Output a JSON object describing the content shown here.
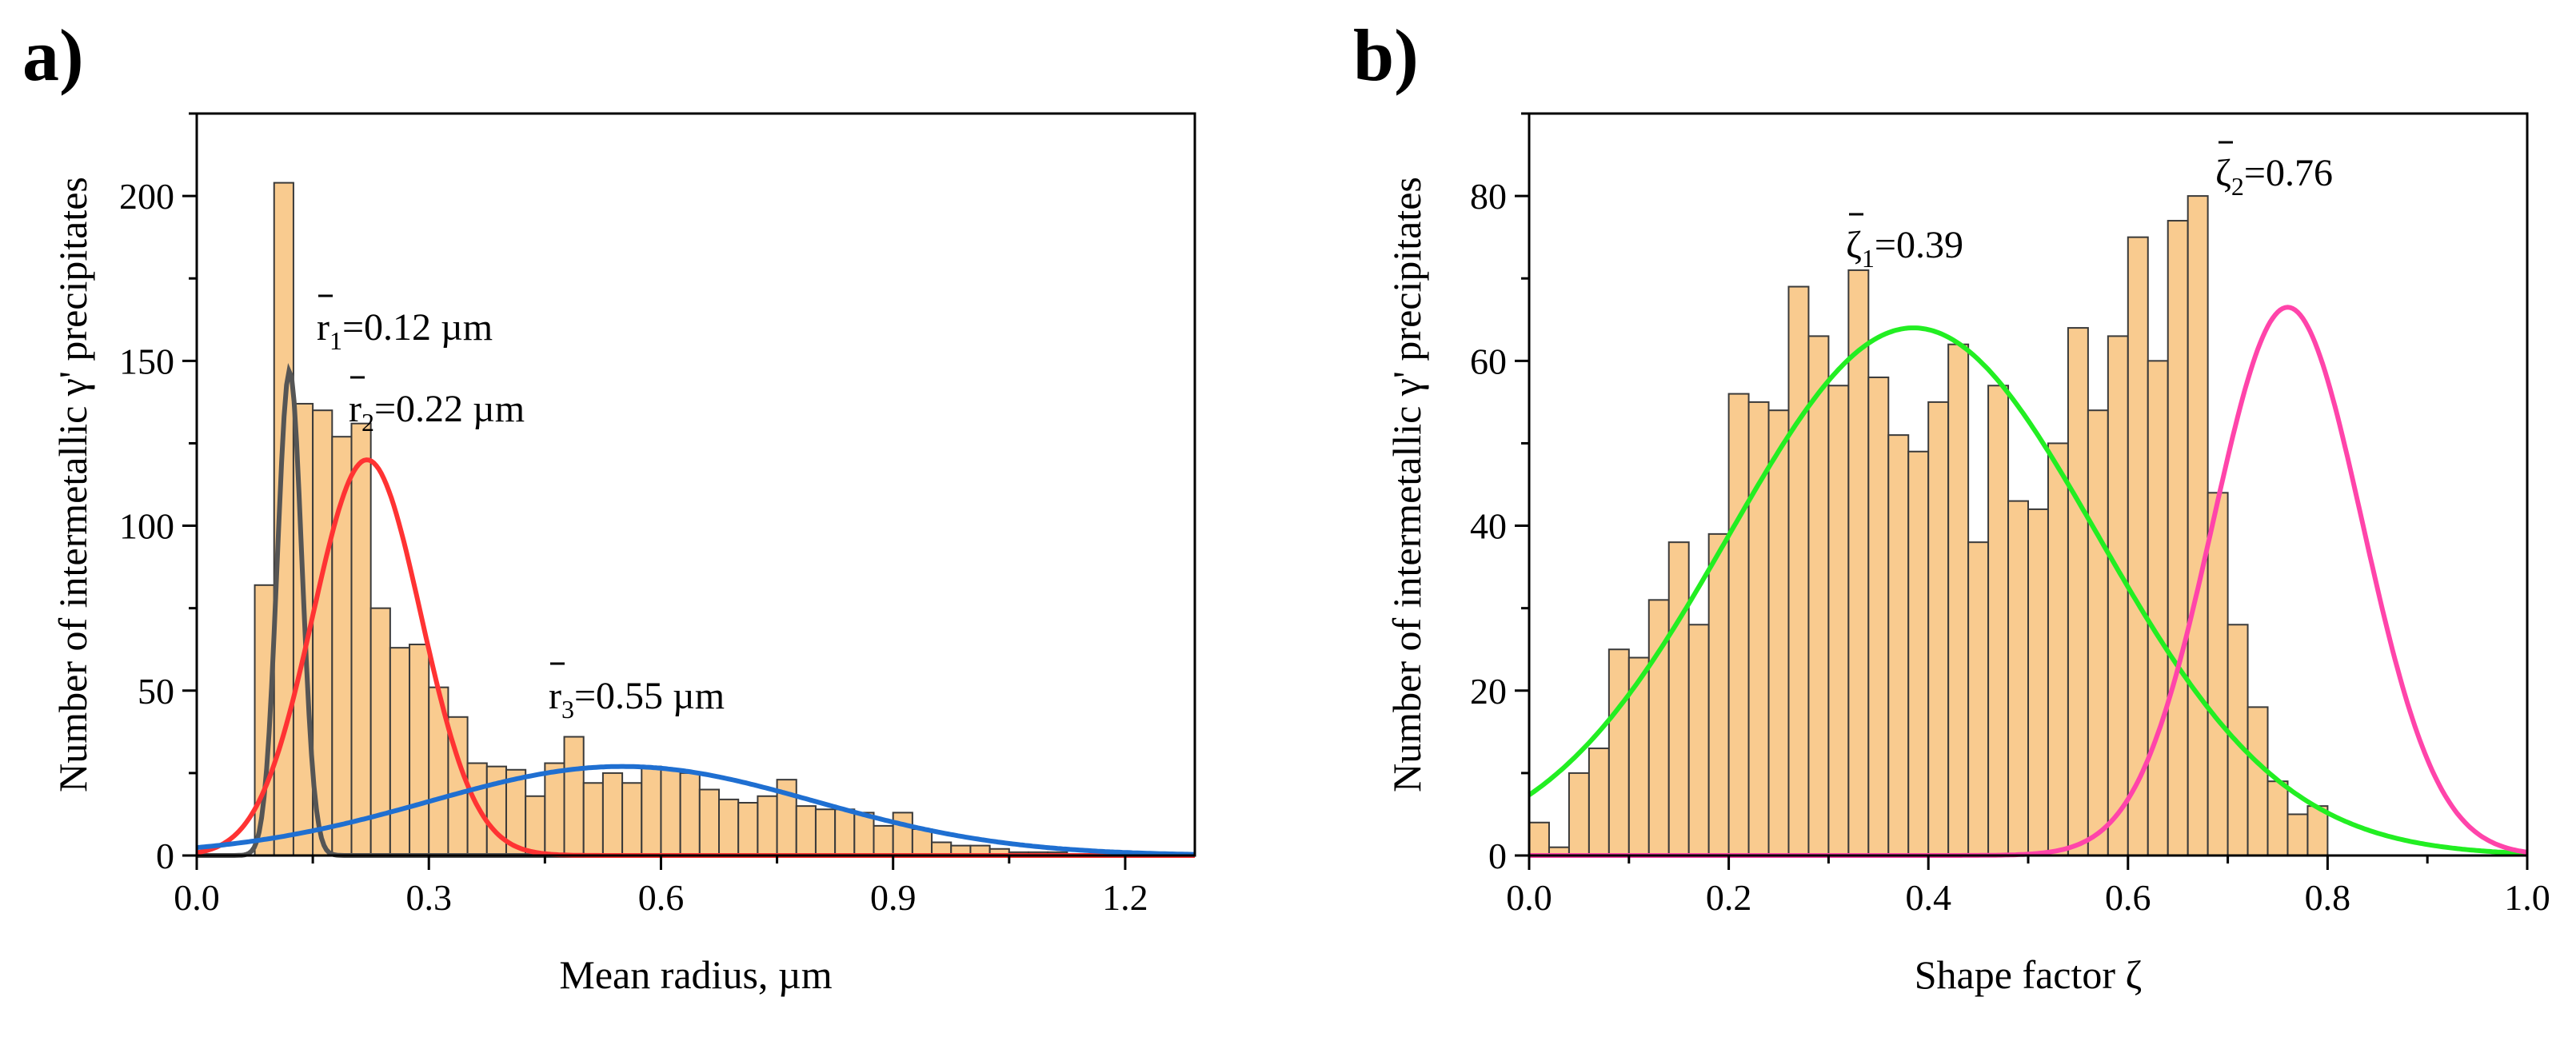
{
  "chart_data": [
    {
      "panel": "a)",
      "type": "bar",
      "xlabel": "Mean radius, µm",
      "ylabel": "Number of intermetallic γ' precipitates",
      "xlim": [
        0,
        1.29
      ],
      "ylim": [
        0,
        225
      ],
      "xticks": [
        "0.0",
        "0.3",
        "0.6",
        "0.9",
        "1.2"
      ],
      "yticks": [
        "0",
        "50",
        "100",
        "150",
        "200"
      ],
      "bin_width": 0.025,
      "bins_start": 0.075,
      "values": [
        82,
        204,
        137,
        135,
        127,
        131,
        75,
        63,
        64,
        51,
        42,
        28,
        27,
        26,
        18,
        28,
        36,
        22,
        25,
        22,
        27,
        26,
        25,
        20,
        17,
        16,
        18,
        23,
        15,
        14,
        14,
        13,
        9,
        13,
        8,
        4,
        3,
        3,
        2,
        1,
        1,
        1,
        0,
        0,
        0,
        0,
        0,
        0,
        0
      ],
      "curves": [
        {
          "color": "#555555",
          "type": "gaussian",
          "mean": 0.12,
          "sigma": 0.016,
          "amplitude": 147
        },
        {
          "color": "#ff3333",
          "type": "gaussian",
          "mean": 0.22,
          "sigma": 0.07,
          "amplitude": 120
        },
        {
          "color": "#1f6fd1",
          "type": "gaussian",
          "mean": 0.55,
          "sigma": 0.25,
          "amplitude": 27
        }
      ],
      "annotations": [
        {
          "sym": "r",
          "sub": "1",
          "text": "=0.12 µm"
        },
        {
          "sym": "r",
          "sub": "2",
          "text": "=0.22 µm"
        },
        {
          "sym": "r",
          "sub": "3",
          "text": "=0.55 µm"
        }
      ]
    },
    {
      "panel": "b)",
      "type": "bar",
      "xlabel": "Shape factor ζ",
      "ylabel": "Number of intermetallic γ' precipitates",
      "xlim": [
        0,
        1.0
      ],
      "ylim": [
        0,
        90
      ],
      "xticks": [
        "0.0",
        "0.2",
        "0.4",
        "0.6",
        "0.8",
        "1.0"
      ],
      "yticks": [
        "0",
        "20",
        "40",
        "60",
        "80"
      ],
      "bin_width": 0.02,
      "bins_start": 0.0,
      "values": [
        4,
        1,
        10,
        13,
        25,
        24,
        31,
        38,
        28,
        39,
        56,
        55,
        54,
        69,
        63,
        57,
        71,
        58,
        51,
        49,
        55,
        62,
        38,
        57,
        43,
        42,
        50,
        64,
        54,
        63,
        75,
        60,
        77,
        80,
        44,
        28,
        18,
        9,
        5,
        6
      ],
      "curves": [
        {
          "color": "#22ee22",
          "type": "gaussian",
          "mean": 0.385,
          "sigma": 0.185,
          "amplitude": 64
        },
        {
          "color": "#ff44aa",
          "type": "gaussian",
          "mean": 0.76,
          "sigma": 0.075,
          "amplitude": 66.5
        }
      ],
      "annotations": [
        {
          "sym": "ζ",
          "sub": "1",
          "text": "=0.39"
        },
        {
          "sym": "ζ",
          "sub": "2",
          "text": "=0.76"
        }
      ]
    }
  ],
  "style": {
    "bar_fill": "#f9cb8f",
    "bar_stroke": "#3a3a3a",
    "axis_color": "#000000"
  }
}
